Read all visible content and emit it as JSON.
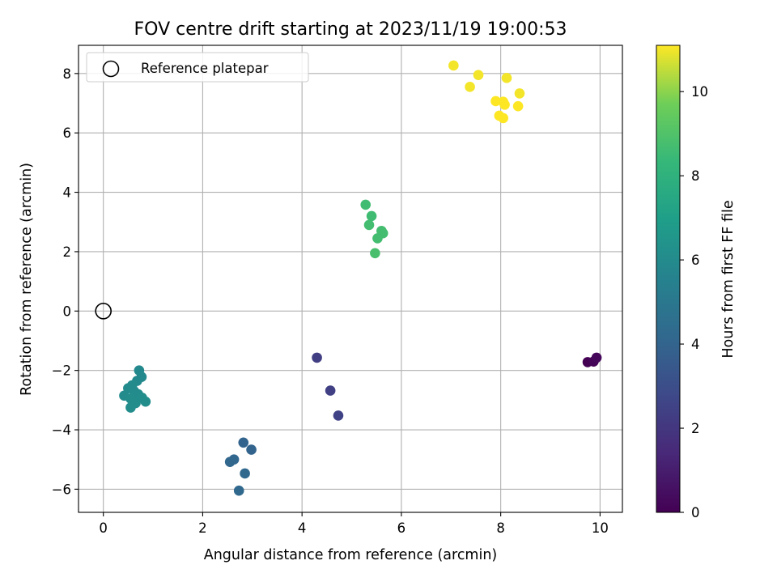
{
  "chart_data": {
    "type": "scatter",
    "title": "FOV centre drift starting at 2023/11/19 19:00:53",
    "xlabel": "Angular distance from reference (arcmin)",
    "ylabel": "Rotation from reference (arcmin)",
    "xlim": [
      -0.5,
      10.45
    ],
    "ylim": [
      -6.78,
      8.95
    ],
    "xticks": [
      0,
      2,
      4,
      6,
      8,
      10
    ],
    "yticks": [
      -6,
      -4,
      -2,
      0,
      2,
      4,
      6,
      8
    ],
    "grid": true,
    "legend": {
      "placement": "top-left",
      "entries": [
        "Reference platepar"
      ]
    },
    "reference_point": {
      "x": 0,
      "y": 0,
      "label": "Reference platepar",
      "marker": "open-circle"
    },
    "colorbar": {
      "label": "Hours from first FF file",
      "colormap": "viridis",
      "range": [
        0,
        11.1
      ],
      "ticks": [
        0,
        2,
        4,
        6,
        8,
        10
      ]
    },
    "points": [
      {
        "x": 9.75,
        "y": -1.72,
        "hours": 0.0
      },
      {
        "x": 9.87,
        "y": -1.7,
        "hours": 0.1
      },
      {
        "x": 9.93,
        "y": -1.57,
        "hours": 0.2
      },
      {
        "x": 4.3,
        "y": -1.57,
        "hours": 2.3
      },
      {
        "x": 4.57,
        "y": -2.68,
        "hours": 2.4
      },
      {
        "x": 4.73,
        "y": -3.52,
        "hours": 2.5
      },
      {
        "x": 2.82,
        "y": -4.43,
        "hours": 4.0
      },
      {
        "x": 2.98,
        "y": -4.67,
        "hours": 4.0
      },
      {
        "x": 2.55,
        "y": -5.08,
        "hours": 4.1
      },
      {
        "x": 2.63,
        "y": -5.0,
        "hours": 4.1
      },
      {
        "x": 2.85,
        "y": -5.47,
        "hours": 4.2
      },
      {
        "x": 2.73,
        "y": -6.05,
        "hours": 4.2
      },
      {
        "x": 0.72,
        "y": -2.0,
        "hours": 5.9
      },
      {
        "x": 0.77,
        "y": -2.22,
        "hours": 5.9
      },
      {
        "x": 0.68,
        "y": -2.35,
        "hours": 5.9
      },
      {
        "x": 0.58,
        "y": -2.5,
        "hours": 6.0
      },
      {
        "x": 0.5,
        "y": -2.6,
        "hours": 6.0
      },
      {
        "x": 0.62,
        "y": -2.7,
        "hours": 6.0
      },
      {
        "x": 0.7,
        "y": -2.8,
        "hours": 6.0
      },
      {
        "x": 0.42,
        "y": -2.85,
        "hours": 6.0
      },
      {
        "x": 0.55,
        "y": -2.95,
        "hours": 6.1
      },
      {
        "x": 0.78,
        "y": -2.92,
        "hours": 6.1
      },
      {
        "x": 0.85,
        "y": -3.05,
        "hours": 6.1
      },
      {
        "x": 0.65,
        "y": -3.1,
        "hours": 6.1
      },
      {
        "x": 0.55,
        "y": -3.25,
        "hours": 6.1
      },
      {
        "x": 5.28,
        "y": 3.58,
        "hours": 8.6
      },
      {
        "x": 5.4,
        "y": 3.2,
        "hours": 8.6
      },
      {
        "x": 5.35,
        "y": 2.9,
        "hours": 8.7
      },
      {
        "x": 5.6,
        "y": 2.7,
        "hours": 8.7
      },
      {
        "x": 5.63,
        "y": 2.62,
        "hours": 8.7
      },
      {
        "x": 5.52,
        "y": 2.45,
        "hours": 8.7
      },
      {
        "x": 5.47,
        "y": 1.95,
        "hours": 8.8
      },
      {
        "x": 7.05,
        "y": 8.27,
        "hours": 11.0
      },
      {
        "x": 7.55,
        "y": 7.95,
        "hours": 11.0
      },
      {
        "x": 8.12,
        "y": 7.85,
        "hours": 11.0
      },
      {
        "x": 7.38,
        "y": 7.55,
        "hours": 11.0
      },
      {
        "x": 8.38,
        "y": 7.33,
        "hours": 11.0
      },
      {
        "x": 7.9,
        "y": 7.07,
        "hours": 11.1
      },
      {
        "x": 8.05,
        "y": 7.05,
        "hours": 11.1
      },
      {
        "x": 8.08,
        "y": 6.95,
        "hours": 11.1
      },
      {
        "x": 8.35,
        "y": 6.9,
        "hours": 11.1
      },
      {
        "x": 7.97,
        "y": 6.58,
        "hours": 11.1
      },
      {
        "x": 8.05,
        "y": 6.5,
        "hours": 11.1
      }
    ]
  }
}
